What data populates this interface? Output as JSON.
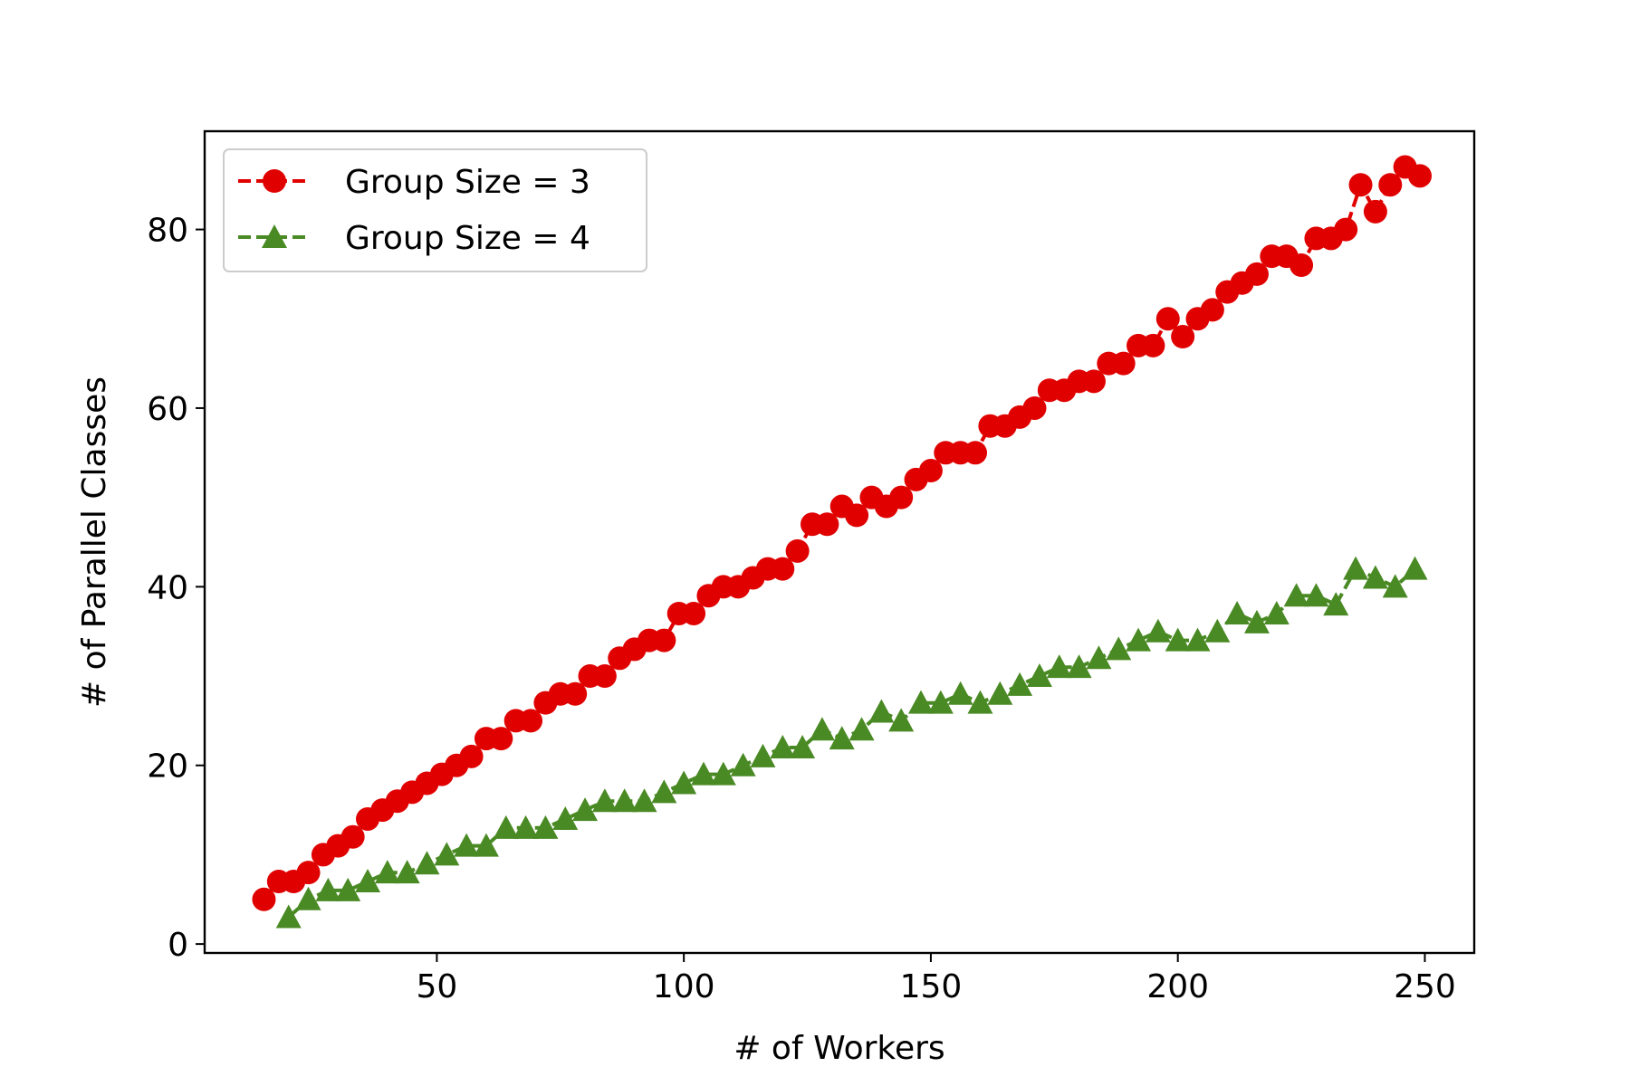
{
  "chart_data": {
    "type": "line",
    "xlabel": "# of Workers",
    "ylabel": "# of Parallel Classes",
    "xlim": [
      3,
      260
    ],
    "ylim": [
      -1,
      91
    ],
    "xticks": [
      50,
      100,
      150,
      200,
      250
    ],
    "yticks": [
      0,
      20,
      40,
      60,
      80
    ],
    "grid": false,
    "legend_position": "top-left",
    "series": [
      {
        "name": "Group Size = 3",
        "color": "#e00000",
        "marker": "circle",
        "linestyle": "dashed",
        "points": [
          [
            15,
            5
          ],
          [
            18,
            7
          ],
          [
            21,
            7
          ],
          [
            24,
            8
          ],
          [
            27,
            10
          ],
          [
            30,
            11
          ],
          [
            33,
            12
          ],
          [
            36,
            14
          ],
          [
            39,
            15
          ],
          [
            42,
            16
          ],
          [
            45,
            17
          ],
          [
            48,
            18
          ],
          [
            51,
            19
          ],
          [
            54,
            20
          ],
          [
            57,
            21
          ],
          [
            60,
            23
          ],
          [
            63,
            23
          ],
          [
            66,
            25
          ],
          [
            69,
            25
          ],
          [
            72,
            27
          ],
          [
            75,
            28
          ],
          [
            78,
            28
          ],
          [
            81,
            30
          ],
          [
            84,
            30
          ],
          [
            87,
            32
          ],
          [
            90,
            33
          ],
          [
            93,
            34
          ],
          [
            96,
            34
          ],
          [
            99,
            37
          ],
          [
            102,
            37
          ],
          [
            105,
            39
          ],
          [
            108,
            40
          ],
          [
            111,
            40
          ],
          [
            114,
            41
          ],
          [
            117,
            42
          ],
          [
            120,
            42
          ],
          [
            123,
            44
          ],
          [
            126,
            47
          ],
          [
            129,
            47
          ],
          [
            132,
            49
          ],
          [
            135,
            48
          ],
          [
            138,
            50
          ],
          [
            141,
            49
          ],
          [
            144,
            50
          ],
          [
            147,
            52
          ],
          [
            150,
            53
          ],
          [
            153,
            55
          ],
          [
            156,
            55
          ],
          [
            159,
            55
          ],
          [
            162,
            58
          ],
          [
            165,
            58
          ],
          [
            168,
            59
          ],
          [
            171,
            60
          ],
          [
            174,
            62
          ],
          [
            177,
            62
          ],
          [
            180,
            63
          ],
          [
            183,
            63
          ],
          [
            186,
            65
          ],
          [
            189,
            65
          ],
          [
            192,
            67
          ],
          [
            195,
            67
          ],
          [
            198,
            70
          ],
          [
            201,
            68
          ],
          [
            204,
            70
          ],
          [
            207,
            71
          ],
          [
            210,
            73
          ],
          [
            213,
            74
          ],
          [
            216,
            75
          ],
          [
            219,
            77
          ],
          [
            222,
            77
          ],
          [
            225,
            76
          ],
          [
            228,
            79
          ],
          [
            231,
            79
          ],
          [
            234,
            80
          ],
          [
            237,
            85
          ],
          [
            240,
            82
          ],
          [
            243,
            85
          ],
          [
            246,
            87
          ],
          [
            249,
            86
          ]
        ]
      },
      {
        "name": "Group Size = 4",
        "color": "#4a8a24",
        "marker": "triangle",
        "linestyle": "dashed",
        "points": [
          [
            20,
            3
          ],
          [
            24,
            5
          ],
          [
            28,
            6
          ],
          [
            32,
            6
          ],
          [
            36,
            7
          ],
          [
            40,
            8
          ],
          [
            44,
            8
          ],
          [
            48,
            9
          ],
          [
            52,
            10
          ],
          [
            56,
            11
          ],
          [
            60,
            11
          ],
          [
            64,
            13
          ],
          [
            68,
            13
          ],
          [
            72,
            13
          ],
          [
            76,
            14
          ],
          [
            80,
            15
          ],
          [
            84,
            16
          ],
          [
            88,
            16
          ],
          [
            92,
            16
          ],
          [
            96,
            17
          ],
          [
            100,
            18
          ],
          [
            104,
            19
          ],
          [
            108,
            19
          ],
          [
            112,
            20
          ],
          [
            116,
            21
          ],
          [
            120,
            22
          ],
          [
            124,
            22
          ],
          [
            128,
            24
          ],
          [
            132,
            23
          ],
          [
            136,
            24
          ],
          [
            140,
            26
          ],
          [
            144,
            25
          ],
          [
            148,
            27
          ],
          [
            152,
            27
          ],
          [
            156,
            28
          ],
          [
            160,
            27
          ],
          [
            164,
            28
          ],
          [
            168,
            29
          ],
          [
            172,
            30
          ],
          [
            176,
            31
          ],
          [
            180,
            31
          ],
          [
            184,
            32
          ],
          [
            188,
            33
          ],
          [
            192,
            34
          ],
          [
            196,
            35
          ],
          [
            200,
            34
          ],
          [
            204,
            34
          ],
          [
            208,
            35
          ],
          [
            212,
            37
          ],
          [
            216,
            36
          ],
          [
            220,
            37
          ],
          [
            224,
            39
          ],
          [
            228,
            39
          ],
          [
            232,
            38
          ],
          [
            236,
            42
          ],
          [
            240,
            41
          ],
          [
            244,
            40
          ],
          [
            248,
            42
          ]
        ]
      }
    ]
  }
}
